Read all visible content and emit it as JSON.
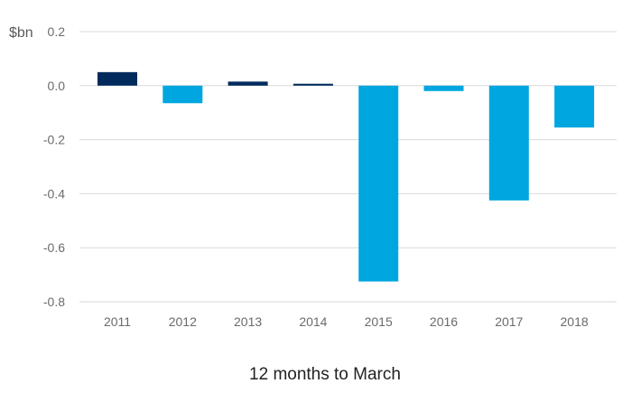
{
  "chart_data": {
    "type": "bar",
    "title": "",
    "ylabel": "$bn",
    "xlabel": "12 months to March",
    "categories": [
      "2011",
      "2012",
      "2013",
      "2014",
      "2015",
      "2016",
      "2017",
      "2018"
    ],
    "values": [
      0.05,
      -0.065,
      0.015,
      0.007,
      -0.725,
      -0.02,
      -0.425,
      -0.155
    ],
    "ylim": [
      -0.8,
      0.2
    ],
    "yticks": [
      0.2,
      0.0,
      -0.2,
      -0.4,
      -0.6,
      -0.8
    ],
    "ytick_labels": [
      "0.2",
      "0.0",
      "-0.2",
      "-0.4",
      "-0.6",
      "-0.8"
    ],
    "grid": true,
    "colors": {
      "positive": "#002b5c",
      "negative": "#00a6e0",
      "grid": "#d9d9d9"
    }
  }
}
